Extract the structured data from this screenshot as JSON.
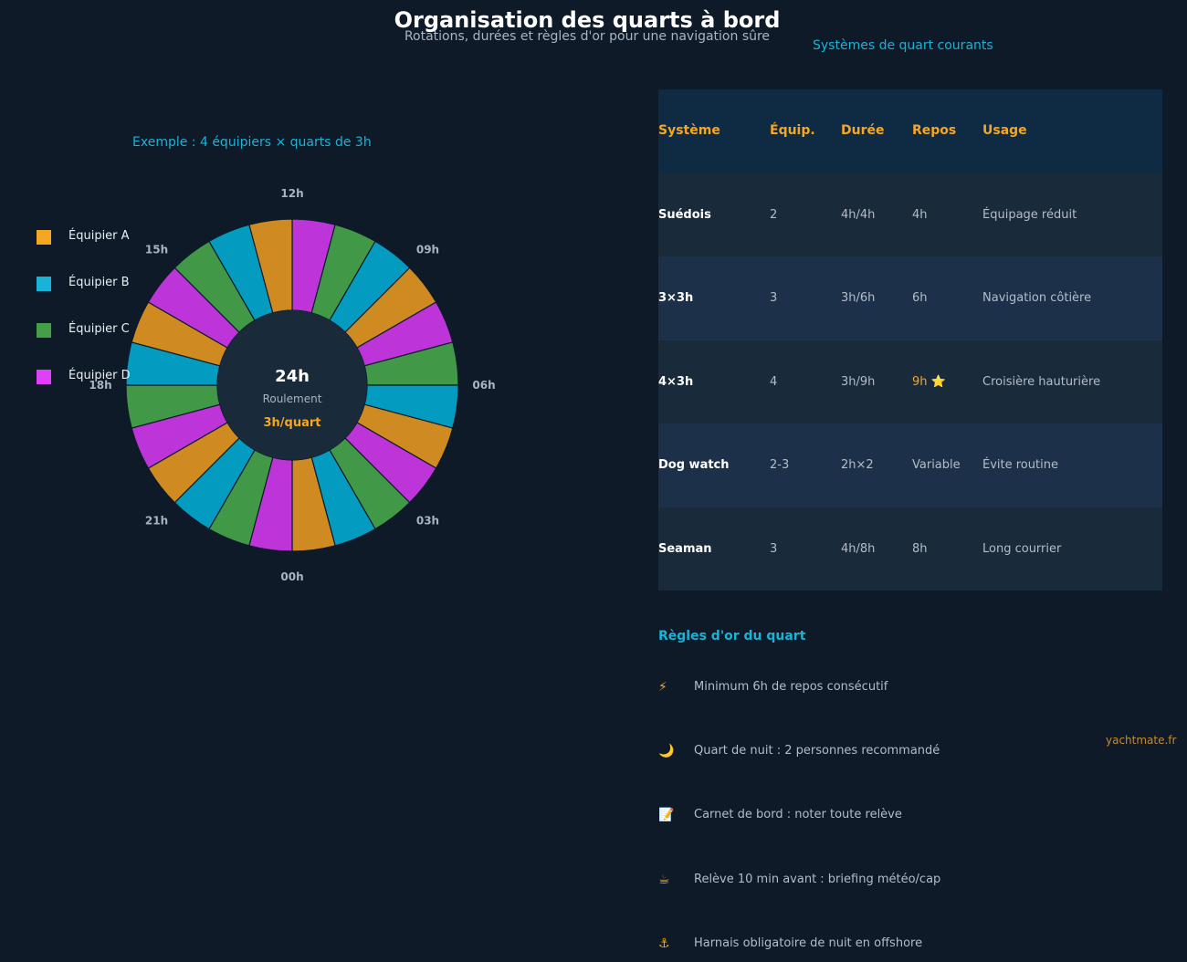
{
  "header": {
    "title": "Organisation des quarts à bord",
    "subtitle": "Rotations, durées et règles d'or pour une navigation sûre"
  },
  "table_title": "Systèmes de quart courants",
  "wheel": {
    "caption": "Exemple : 4 équipiers × quarts de 3h",
    "center_main": "24h",
    "center_sub": "Roulement",
    "center_accent": "3h/quart",
    "hour_labels": [
      "12h",
      "09h",
      "06h",
      "03h",
      "00h",
      "21h",
      "18h",
      "15h"
    ]
  },
  "chart_data": {
    "type": "pie",
    "description_free": true,
    "segments_count": 24,
    "segment_colors_in_order": [
      "purple",
      "green",
      "cyan",
      "orange"
    ],
    "series": [
      {
        "name": "Équipier A",
        "color": "#f5a623"
      },
      {
        "name": "Équipier B",
        "color": "#19b3d8"
      },
      {
        "name": "Équipier C",
        "color": "#43a047"
      },
      {
        "name": "Équipier D",
        "color": "#e040fb"
      }
    ],
    "segment_color_fill": {
      "orange": "#cf8a22",
      "cyan": "#039bbf",
      "green": "#419847",
      "purple": "#bd35d8"
    }
  },
  "legend": [
    {
      "label": "Équipier A",
      "color": "#f5a623"
    },
    {
      "label": "Équipier B",
      "color": "#19b3d8"
    },
    {
      "label": "Équipier C",
      "color": "#43a047"
    },
    {
      "label": "Équipier D",
      "color": "#e040fb"
    }
  ],
  "table": {
    "headers": [
      "Système",
      "Équip.",
      "Durée",
      "Repos",
      "Usage"
    ],
    "rows": [
      [
        "Suédois",
        "2",
        "4h/4h",
        "4h",
        "Équipage réduit"
      ],
      [
        "3×3h",
        "3",
        "3h/6h",
        "6h",
        "Navigation côtière"
      ],
      [
        "4×3h",
        "4",
        "3h/9h",
        "9h ⭐",
        "Croisière hauturière"
      ],
      [
        "Dog watch",
        "2-3",
        "2h×2",
        "Variable",
        "Évite routine"
      ],
      [
        "Seaman",
        "3",
        "4h/8h",
        "8h",
        "Long courrier"
      ]
    ]
  },
  "rules": {
    "title": "Règles d'or du quart",
    "items": [
      {
        "icon": "⚡",
        "icon_name": "lightning-icon",
        "text": "Minimum 6h de repos consécutif"
      },
      {
        "icon": "🌙",
        "icon_name": "moon-icon",
        "text": "Quart de nuit : 2 personnes recommandé"
      },
      {
        "icon": "📝",
        "icon_name": "notebook-icon",
        "text": "Carnet de bord : noter toute relève"
      },
      {
        "icon": "☕",
        "icon_name": "coffee-icon",
        "text": "Relève 10 min avant : briefing météo/cap"
      },
      {
        "icon": "⚓",
        "icon_name": "anchor-icon",
        "text": "Harnais obligatoire de nuit en offshore"
      }
    ]
  },
  "watermark": "yachtmate.fr",
  "colors": {
    "background": "#0e1a28",
    "accent": "#f5a623",
    "cyan": "#19b3d8"
  }
}
